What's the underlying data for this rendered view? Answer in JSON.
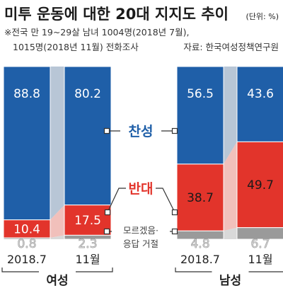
{
  "header": {
    "title": "미투 운동에 대한 20대 지지도 추이",
    "unit": "(단위: %)",
    "note_line1": "※전국 만 19~29살 남녀 1004명(2018년 7월),",
    "note_line2": "1015명(2018년 11월) 전화조사",
    "source": "자료: 한국여성정책연구원"
  },
  "colors": {
    "support": "#1f5fa8",
    "oppose": "#e2342b",
    "unknown": "#9a9a9a",
    "support_band": "#b8c6d6",
    "oppose_band": "#f1c0bb",
    "unknown_band": "#d9d9d9"
  },
  "chart_data": {
    "type": "bar",
    "stacked": true,
    "categories": [
      "2018.7",
      "11월"
    ],
    "groups": [
      {
        "name": "여성",
        "series": [
          {
            "name": "찬성",
            "values": [
              88.8,
              80.2
            ]
          },
          {
            "name": "반대",
            "values": [
              10.4,
              17.5
            ]
          },
          {
            "name": "모르겠음·응답 거절",
            "values": [
              0.8,
              2.3
            ]
          }
        ]
      },
      {
        "name": "남성",
        "series": [
          {
            "name": "찬성",
            "values": [
              56.5,
              43.6
            ]
          },
          {
            "name": "반대",
            "values": [
              38.7,
              49.7
            ]
          },
          {
            "name": "모르겠음·응답 거절",
            "values": [
              4.8,
              6.7
            ]
          }
        ]
      }
    ],
    "legend": {
      "support": "찬성",
      "oppose": "반대",
      "unknown_line1": "모르겠음·",
      "unknown_line2": "응답 거절"
    },
    "ylim": [
      0,
      100
    ]
  }
}
